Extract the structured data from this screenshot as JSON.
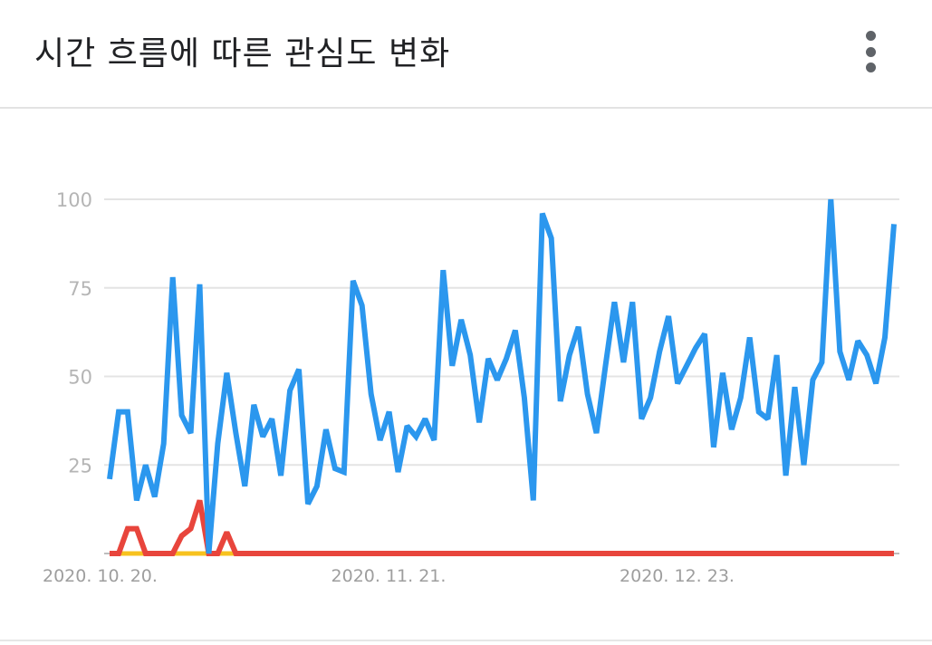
{
  "header": {
    "title": "시간 흐름에 따른 관심도 변화",
    "more_icon": "more-vert-icon"
  },
  "chart_data": {
    "type": "line",
    "title": "시간 흐름에 따른 관심도 변화",
    "ylim": [
      0,
      100
    ],
    "y_ticks": [
      "25",
      "50",
      "75",
      "100"
    ],
    "x_ticks": [
      {
        "label": "2020. 10. 20.",
        "index": 0
      },
      {
        "label": "2020. 11. 21.",
        "index": 32
      },
      {
        "label": "2020. 12. 23.",
        "index": 64
      }
    ],
    "grid": true,
    "legend": "none",
    "series": [
      {
        "color": "#2b97ee",
        "values": [
          21,
          40,
          40,
          15,
          25,
          16,
          31,
          78,
          39,
          34,
          76,
          0,
          31,
          51,
          34,
          19,
          42,
          33,
          38,
          22,
          46,
          52,
          14,
          19,
          35,
          24,
          23,
          77,
          70,
          45,
          32,
          40,
          23,
          36,
          33,
          38,
          32,
          80,
          53,
          66,
          56,
          37,
          55,
          49,
          55,
          63,
          44,
          15,
          96,
          89,
          43,
          56,
          64,
          45,
          34,
          53,
          71,
          54,
          71,
          38,
          44,
          57,
          67,
          48,
          53,
          58,
          62,
          30,
          51,
          35,
          44,
          61,
          40,
          38,
          56,
          22,
          47,
          25,
          49,
          54,
          100,
          57,
          49,
          60,
          56,
          48,
          61,
          93
        ]
      },
      {
        "color": "#e8453c",
        "values": [
          0,
          0,
          7,
          7,
          0,
          0,
          0,
          0,
          5,
          7,
          15,
          0,
          0,
          6,
          0,
          0,
          0,
          0,
          0,
          0,
          0,
          0,
          0,
          0,
          0,
          0,
          0,
          0,
          0,
          0,
          0,
          0,
          0,
          0,
          0,
          0,
          0,
          0,
          0,
          0,
          0,
          0,
          0,
          0,
          0,
          0,
          0,
          0,
          0,
          0,
          0,
          0,
          0,
          0,
          0,
          0,
          0,
          0,
          0,
          0,
          0,
          0,
          0,
          0,
          0,
          0,
          0,
          0,
          0,
          0,
          0,
          0,
          0,
          0,
          0,
          0,
          0,
          0,
          0,
          0,
          0,
          0,
          0,
          0,
          0,
          0,
          0,
          0
        ]
      },
      {
        "color": "#f7c21e",
        "values": [
          0,
          0,
          0,
          0,
          0,
          0,
          0,
          0,
          0,
          0,
          0,
          0,
          0,
          0,
          0,
          0,
          0,
          0,
          0,
          0,
          0,
          0,
          0,
          0,
          0,
          0,
          0,
          0,
          0,
          0,
          0,
          0,
          0,
          0,
          0,
          0,
          0,
          0,
          0,
          0,
          0,
          0,
          0,
          0,
          0,
          0,
          0,
          0,
          0,
          0,
          0,
          0,
          0,
          0,
          0,
          0,
          0,
          0,
          0,
          0,
          0,
          0,
          0,
          0,
          0,
          0,
          0,
          0,
          0,
          0,
          0,
          0,
          0,
          0,
          0,
          0,
          0,
          0,
          0,
          0,
          0,
          0,
          0,
          0,
          0,
          0,
          0,
          0
        ]
      }
    ]
  }
}
